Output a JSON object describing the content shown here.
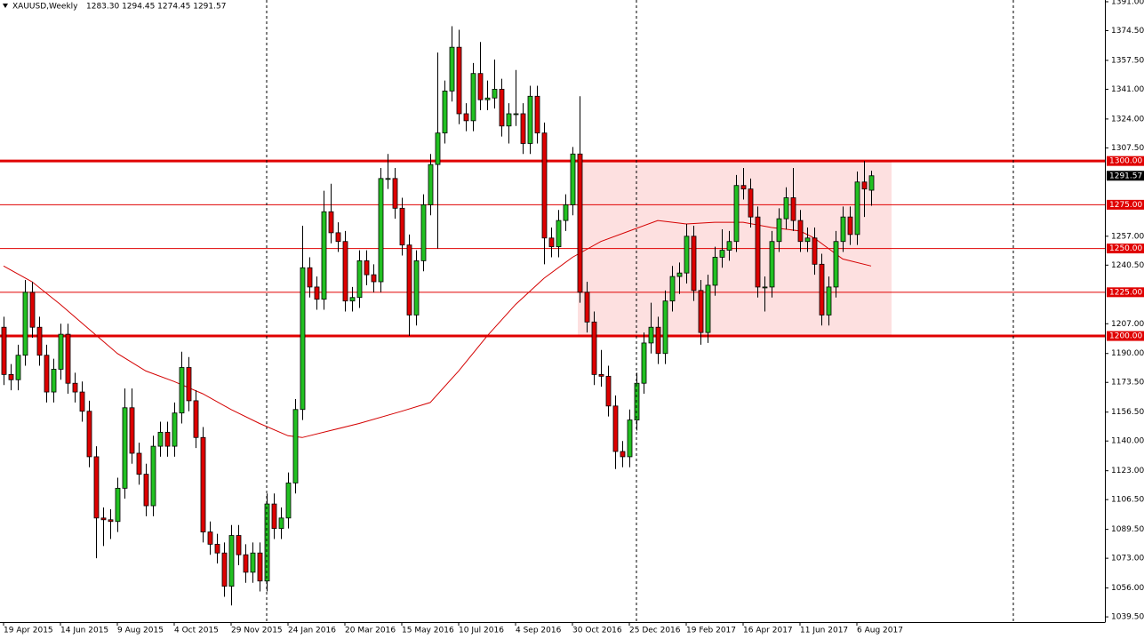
{
  "chart_data": {
    "type": "candlestick",
    "symbol": "XAUUSD,Weekly",
    "ohlc_text": "1283.30 1294.45 1274.45 1291.57",
    "categories": [
      "19 Apr 2015",
      null,
      null,
      null,
      null,
      null,
      null,
      null,
      "14 Jun 2015",
      null,
      null,
      null,
      null,
      null,
      null,
      null,
      "9 Aug 2015",
      null,
      null,
      null,
      null,
      null,
      null,
      null,
      "4 Oct 2015",
      null,
      null,
      null,
      null,
      null,
      null,
      null,
      "29 Nov 2015",
      null,
      null,
      null,
      null,
      null,
      null,
      null,
      "24 Jan 2016",
      null,
      null,
      null,
      null,
      null,
      null,
      null,
      "20 Mar 2016",
      null,
      null,
      null,
      null,
      null,
      null,
      null,
      "15 May 2016",
      null,
      null,
      null,
      null,
      null,
      null,
      null,
      "10 Jul 2016",
      null,
      null,
      null,
      null,
      null,
      null,
      null,
      "4 Sep 2016",
      null,
      null,
      null,
      null,
      null,
      null,
      null,
      "30 Oct 2016",
      null,
      null,
      null,
      null,
      null,
      null,
      null,
      "25 Dec 2016",
      null,
      null,
      null,
      null,
      null,
      null,
      null,
      "19 Feb 2017",
      null,
      null,
      null,
      null,
      null,
      null,
      null,
      "16 Apr 2017",
      null,
      null,
      null,
      null,
      null,
      null,
      null,
      "11 Jun 2017",
      null,
      null,
      null,
      null,
      null,
      null,
      null,
      "6 Aug 2017",
      null,
      null
    ],
    "open": [
      1205,
      1178,
      1175,
      1189,
      1225,
      1205,
      1189,
      1168,
      1181,
      1201,
      1173,
      1168,
      1157,
      1131,
      1096,
      1095,
      1094,
      1113,
      1159,
      1133,
      1121,
      1103,
      1137,
      1145,
      1137,
      1156,
      1182,
      1163,
      1142,
      1088,
      1081,
      1076,
      1057,
      1086,
      1075,
      1065,
      1076,
      1060,
      1104,
      1090,
      1096,
      1116,
      1158,
      1239,
      1228,
      1221,
      1271,
      1259,
      1254,
      1220,
      1222,
      1243,
      1235,
      1231,
      1290,
      1290,
      1273,
      1252,
      1212,
      1243,
      1275,
      1298,
      1316,
      1340,
      1365,
      1327,
      1323,
      1350,
      1335,
      1336,
      1341,
      1320,
      1327,
      1327,
      1310,
      1337,
      1316,
      1256,
      1251,
      1266,
      1275,
      1304,
      1225,
      1208,
      1178,
      1177,
      1160,
      1134,
      1131,
      1152,
      1173,
      1196,
      1205,
      1190,
      1220,
      1234,
      1236,
      1257,
      1226,
      1202,
      1229,
      1245,
      1249,
      1254,
      1286,
      1284,
      1268,
      1228,
      1228,
      1254,
      1267,
      1279,
      1266,
      1254,
      1256,
      1241,
      1212,
      1228,
      1254,
      1268,
      1258,
      1288,
      1283.3
    ],
    "high": [
      1211,
      1184,
      1195,
      1232,
      1231,
      1211,
      1195,
      1187,
      1207,
      1207,
      1179,
      1174,
      1163,
      1137,
      1102,
      1101,
      1119,
      1170,
      1170,
      1139,
      1127,
      1143,
      1151,
      1151,
      1162,
      1191,
      1188,
      1169,
      1148,
      1094,
      1087,
      1082,
      1092,
      1092,
      1081,
      1082,
      1082,
      1110,
      1110,
      1102,
      1122,
      1164,
      1263,
      1245,
      1234,
      1283,
      1287,
      1265,
      1260,
      1228,
      1249,
      1249,
      1241,
      1296,
      1304,
      1296,
      1279,
      1258,
      1249,
      1281,
      1304,
      1362,
      1346,
      1377,
      1375,
      1333,
      1356,
      1368,
      1346,
      1358,
      1347,
      1333,
      1352,
      1333,
      1343,
      1343,
      1322,
      1262,
      1272,
      1281,
      1308,
      1337,
      1231,
      1214,
      1192,
      1183,
      1166,
      1140,
      1158,
      1179,
      1202,
      1219,
      1211,
      1226,
      1240,
      1242,
      1264,
      1263,
      1232,
      1235,
      1251,
      1261,
      1260,
      1292,
      1296,
      1290,
      1274,
      1234,
      1260,
      1273,
      1285,
      1296,
      1272,
      1262,
      1262,
      1247,
      1234,
      1260,
      1274,
      1274,
      1294,
      1300,
      1294.45
    ],
    "low": [
      1172,
      1169,
      1169,
      1183,
      1199,
      1183,
      1162,
      1162,
      1175,
      1167,
      1162,
      1151,
      1125,
      1073,
      1080,
      1084,
      1088,
      1107,
      1127,
      1115,
      1097,
      1097,
      1131,
      1131,
      1131,
      1150,
      1157,
      1136,
      1082,
      1075,
      1070,
      1051,
      1046,
      1069,
      1059,
      1059,
      1054,
      1054,
      1084,
      1084,
      1090,
      1110,
      1152,
      1222,
      1215,
      1215,
      1253,
      1248,
      1214,
      1214,
      1216,
      1229,
      1225,
      1225,
      1284,
      1267,
      1246,
      1200,
      1206,
      1237,
      1269,
      1250,
      1310,
      1334,
      1321,
      1317,
      1317,
      1329,
      1329,
      1330,
      1314,
      1310,
      1320,
      1304,
      1304,
      1310,
      1241,
      1245,
      1245,
      1260,
      1269,
      1219,
      1202,
      1172,
      1171,
      1154,
      1124,
      1125,
      1125,
      1146,
      1167,
      1190,
      1184,
      1184,
      1214,
      1224,
      1230,
      1220,
      1195,
      1196,
      1223,
      1239,
      1243,
      1248,
      1278,
      1262,
      1222,
      1214,
      1222,
      1248,
      1261,
      1260,
      1248,
      1248,
      1235,
      1206,
      1206,
      1222,
      1248,
      1252,
      1252,
      1268,
      1274.45
    ],
    "close": [
      1178,
      1175,
      1189,
      1225,
      1205,
      1189,
      1168,
      1181,
      1201,
      1173,
      1168,
      1157,
      1131,
      1096,
      1095,
      1094,
      1113,
      1159,
      1133,
      1121,
      1103,
      1137,
      1145,
      1137,
      1156,
      1182,
      1163,
      1142,
      1088,
      1081,
      1076,
      1057,
      1086,
      1075,
      1065,
      1076,
      1060,
      1104,
      1090,
      1096,
      1116,
      1158,
      1239,
      1228,
      1221,
      1271,
      1259,
      1254,
      1220,
      1222,
      1243,
      1235,
      1231,
      1290,
      1290,
      1273,
      1252,
      1212,
      1243,
      1275,
      1298,
      1316,
      1340,
      1365,
      1327,
      1323,
      1350,
      1335,
      1336,
      1341,
      1320,
      1327,
      1327,
      1310,
      1337,
      1316,
      1256,
      1251,
      1266,
      1275,
      1304,
      1225,
      1208,
      1178,
      1177,
      1160,
      1134,
      1131,
      1152,
      1173,
      1196,
      1205,
      1190,
      1220,
      1234,
      1236,
      1257,
      1226,
      1202,
      1229,
      1245,
      1249,
      1254,
      1286,
      1284,
      1268,
      1228,
      1228,
      1254,
      1267,
      1279,
      1266,
      1254,
      1256,
      1241,
      1212,
      1228,
      1254,
      1268,
      1258,
      1288,
      1284,
      1291.57
    ],
    "up_color": "#22c022",
    "down_color": "#dd0000",
    "ma": {
      "color": "#d40000",
      "x": [
        0,
        4,
        8,
        12,
        16,
        20,
        24,
        28,
        32,
        36,
        40,
        42,
        46,
        50,
        56,
        60,
        64,
        68,
        72,
        76,
        80,
        84,
        88,
        92,
        96,
        100,
        104,
        108,
        112,
        114,
        116,
        118,
        122
      ],
      "values": [
        1240,
        1231,
        1218,
        1204,
        1190,
        1180,
        1174,
        1167,
        1158,
        1150,
        1143,
        1142,
        1146,
        1150,
        1157,
        1162,
        1180,
        1200,
        1218,
        1233,
        1245,
        1254,
        1260,
        1266,
        1264,
        1265,
        1265,
        1262,
        1260,
        1256,
        1250,
        1244,
        1240
      ]
    },
    "zone": {
      "x": [
        80.75,
        124.875
      ],
      "y": [
        1200,
        1300
      ],
      "color": "#fde0e0"
    },
    "levels": [
      {
        "value": 1300,
        "label": "1300.00",
        "width": 3
      },
      {
        "value": 1275,
        "label": "1275.00",
        "width": 1
      },
      {
        "value": 1250,
        "label": "1250.00",
        "width": 1
      },
      {
        "value": 1225,
        "label": "1225.00",
        "width": 1
      },
      {
        "value": 1200,
        "label": "1200.00",
        "width": 3
      }
    ],
    "level_color": "#e00000",
    "xlim": [
      -0.5,
      154.875
    ],
    "ylim": [
      1036.5,
      1392
    ],
    "yticks": [
      {
        "value": 1391,
        "label": "1391.00"
      },
      {
        "value": 1374.5,
        "label": "1374.50"
      },
      {
        "value": 1357.5,
        "label": "1357.50"
      },
      {
        "value": 1341,
        "label": "1341.00"
      },
      {
        "value": 1324,
        "label": "1324.00"
      },
      {
        "value": 1307.5,
        "label": "1307.50"
      },
      {
        "value": 1257,
        "label": "1257.00"
      },
      {
        "value": 1240.5,
        "label": "1240.50"
      },
      {
        "value": 1207,
        "label": "1207.00"
      },
      {
        "value": 1190,
        "label": "1190.00"
      },
      {
        "value": 1173.5,
        "label": "1173.50"
      },
      {
        "value": 1156.5,
        "label": "1156.50"
      },
      {
        "value": 1140,
        "label": "1140.00"
      },
      {
        "value": 1123,
        "label": "1123.00"
      },
      {
        "value": 1106.5,
        "label": "1106.50"
      },
      {
        "value": 1089.5,
        "label": "1089.50"
      },
      {
        "value": 1073,
        "label": "1073.00"
      },
      {
        "value": 1056,
        "label": "1056.00"
      },
      {
        "value": 1039.5,
        "label": "1039.50"
      }
    ]
  }
}
